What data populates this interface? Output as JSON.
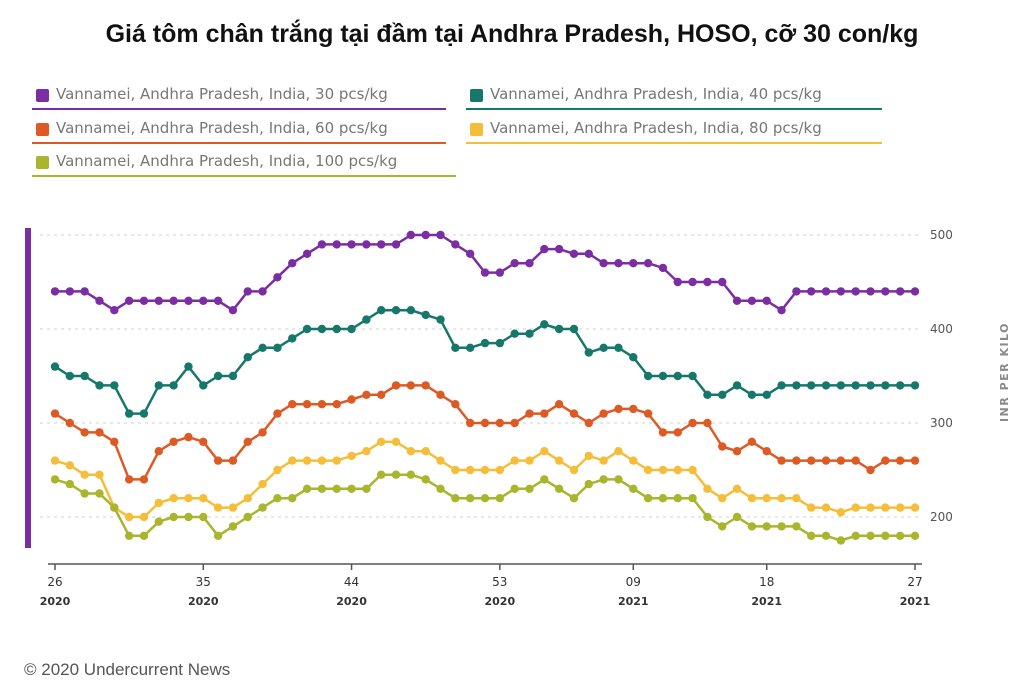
{
  "chart_data": {
    "type": "line",
    "title": "Giá tôm chân trắng tại đầm tại Andhra Pradesh, HOSO, cỡ 30 con/kg",
    "xlabel": "",
    "ylabel": "INR PER KILO",
    "ylim": [
      160,
      505
    ],
    "yticks": [
      200,
      300,
      400,
      500
    ],
    "grid": true,
    "x": [
      0,
      1,
      2,
      3,
      4,
      5,
      6,
      7,
      8,
      9,
      10,
      11,
      12,
      13,
      14,
      15,
      16,
      17,
      18,
      19,
      20,
      21,
      22,
      23,
      24,
      25,
      26,
      27,
      28,
      29,
      30,
      31,
      32,
      33,
      34,
      35,
      36,
      37,
      38,
      39,
      40,
      41,
      42,
      43,
      44,
      45,
      46,
      47,
      48,
      49,
      50,
      51,
      52,
      53,
      54,
      55,
      56,
      57,
      58
    ],
    "xticks": [
      {
        "index": 0,
        "week": "26",
        "year": "2020"
      },
      {
        "index": 10,
        "week": "35",
        "year": "2020"
      },
      {
        "index": 20,
        "week": "44",
        "year": "2020"
      },
      {
        "index": 30,
        "week": "53",
        "year": "2020"
      },
      {
        "index": 39,
        "week": "09",
        "year": "2021"
      },
      {
        "index": 48,
        "week": "18",
        "year": "2021"
      },
      {
        "index": 58,
        "week": "27",
        "year": "2021"
      }
    ],
    "series": [
      {
        "name": "Vannamei, Andhra Pradesh, India, 30 pcs/kg",
        "color": "#7b2ea3",
        "values": [
          440,
          440,
          440,
          430,
          420,
          430,
          430,
          430,
          430,
          430,
          430,
          430,
          420,
          440,
          440,
          455,
          470,
          480,
          490,
          490,
          490,
          490,
          490,
          490,
          500,
          500,
          500,
          490,
          480,
          460,
          460,
          470,
          470,
          485,
          485,
          480,
          480,
          470,
          470,
          470,
          470,
          465,
          450,
          450,
          450,
          450,
          430,
          430,
          430,
          420,
          440,
          440,
          440,
          440,
          440,
          440,
          440,
          440,
          440
        ]
      },
      {
        "name": "Vannamei, Andhra Pradesh, India, 40 pcs/kg",
        "color": "#16776b",
        "values": [
          360,
          350,
          350,
          340,
          340,
          310,
          310,
          340,
          340,
          360,
          340,
          350,
          350,
          370,
          380,
          380,
          390,
          400,
          400,
          400,
          400,
          410,
          420,
          420,
          420,
          415,
          410,
          380,
          380,
          385,
          385,
          395,
          395,
          405,
          400,
          400,
          375,
          380,
          380,
          370,
          350,
          350,
          350,
          350,
          330,
          330,
          340,
          330,
          330,
          340,
          340,
          340,
          340,
          340,
          340,
          340,
          340,
          340,
          340
        ]
      },
      {
        "name": "Vannamei, Andhra Pradesh, India, 60 pcs/kg",
        "color": "#de5a25",
        "values": [
          310,
          300,
          290,
          290,
          280,
          240,
          240,
          270,
          280,
          285,
          280,
          260,
          260,
          280,
          290,
          310,
          320,
          320,
          320,
          320,
          325,
          330,
          330,
          340,
          340,
          340,
          330,
          320,
          300,
          300,
          300,
          300,
          310,
          310,
          320,
          310,
          300,
          310,
          315,
          315,
          310,
          290,
          290,
          300,
          300,
          275,
          270,
          280,
          270,
          260,
          260,
          260,
          260,
          260,
          260,
          250,
          260,
          260,
          260
        ]
      },
      {
        "name": "Vannamei, Andhra Pradesh, India, 80 pcs/kg",
        "color": "#f5be3a",
        "values": [
          260,
          255,
          245,
          245,
          210,
          200,
          200,
          215,
          220,
          220,
          220,
          210,
          210,
          220,
          235,
          250,
          260,
          260,
          260,
          260,
          265,
          270,
          280,
          280,
          270,
          270,
          260,
          250,
          250,
          250,
          250,
          260,
          260,
          270,
          260,
          250,
          265,
          260,
          270,
          260,
          250,
          250,
          250,
          250,
          230,
          220,
          230,
          220,
          220,
          220,
          220,
          210,
          210,
          205,
          210,
          210,
          210,
          210,
          210
        ]
      },
      {
        "name": "Vannamei, Andhra Pradesh, India, 100 pcs/kg",
        "color": "#a8b52d",
        "values": [
          240,
          235,
          225,
          225,
          210,
          180,
          180,
          195,
          200,
          200,
          200,
          180,
          190,
          200,
          210,
          220,
          220,
          230,
          230,
          230,
          230,
          230,
          245,
          245,
          245,
          240,
          230,
          220,
          220,
          220,
          220,
          230,
          230,
          240,
          230,
          220,
          235,
          240,
          240,
          230,
          220,
          220,
          220,
          220,
          200,
          190,
          200,
          190,
          190,
          190,
          190,
          180,
          180,
          175,
          180,
          180,
          180,
          180,
          180
        ]
      }
    ]
  },
  "footer": "© 2020 Undercurrent News"
}
